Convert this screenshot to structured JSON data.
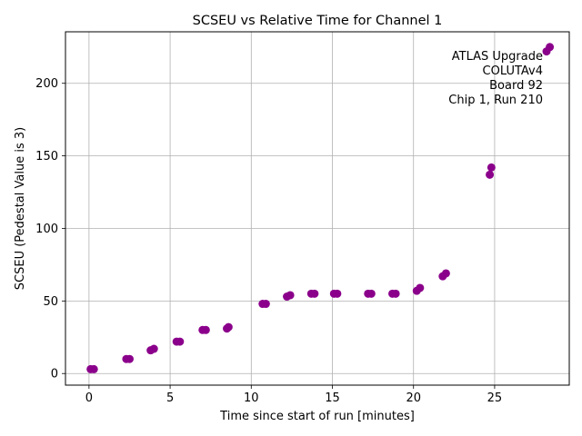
{
  "chart_data": {
    "type": "scatter",
    "title": "SCSEU vs Relative Time for Channel 1",
    "xlabel": "Time since start of run [minutes]",
    "ylabel": "SCSEU (Pedestal Value is 3)",
    "xlim": [
      -1.45,
      29.6
    ],
    "ylim": [
      -8.0,
      235.5
    ],
    "xticks": [
      0,
      5,
      10,
      15,
      20,
      25
    ],
    "yticks": [
      0,
      50,
      100,
      150,
      200
    ],
    "grid": true,
    "marker_color": "#8b008b",
    "annotation": [
      "ATLAS Upgrade",
      "COLUTAv4",
      "Board 92",
      "Chip 1, Run 210"
    ],
    "annotation_placement": "top-right",
    "series": [
      {
        "name": "Channel 1",
        "x": [
          0.1,
          0.3,
          2.3,
          2.5,
          3.8,
          4.0,
          5.4,
          5.6,
          7.0,
          7.2,
          8.5,
          8.6,
          10.7,
          10.9,
          12.2,
          12.4,
          13.7,
          13.9,
          15.1,
          15.3,
          17.2,
          17.4,
          18.7,
          18.9,
          20.2,
          20.4,
          21.8,
          22.0,
          24.7,
          24.8,
          28.2,
          28.4
        ],
        "y": [
          3,
          3,
          10,
          10,
          16,
          17,
          22,
          22,
          30,
          30,
          31,
          32,
          48,
          48,
          53,
          54,
          55,
          55,
          55,
          55,
          55,
          55,
          55,
          55,
          57,
          59,
          67,
          69,
          137,
          142,
          222,
          225
        ]
      }
    ]
  }
}
